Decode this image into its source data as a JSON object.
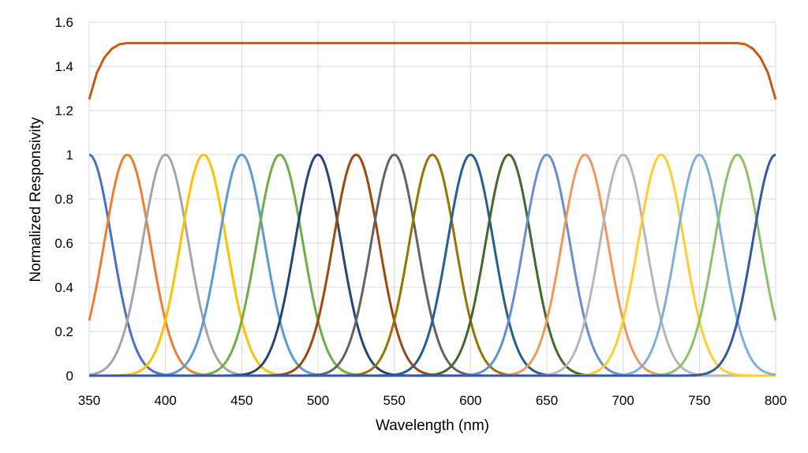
{
  "chart_data": {
    "type": "line",
    "title": "",
    "xlabel": "Wavelength (nm)",
    "ylabel": "Normalized Responsivity",
    "xlim": [
      350,
      800
    ],
    "ylim": [
      0,
      1.6
    ],
    "x_ticks": [
      "350",
      "400",
      "450",
      "500",
      "550",
      "600",
      "650",
      "700",
      "750",
      "800"
    ],
    "y_ticks": [
      "0",
      "0.2",
      "0.4",
      "0.6",
      "0.8",
      "1",
      "1.2",
      "1.4",
      "1.6"
    ],
    "grid": true,
    "legend": "none",
    "x": [
      350,
      360,
      370,
      375,
      380,
      390,
      400,
      410,
      420,
      425,
      430,
      440,
      450,
      460,
      470,
      475,
      480,
      490,
      500,
      510,
      520,
      525,
      530,
      540,
      550,
      560,
      570,
      575,
      580,
      590,
      600,
      610,
      620,
      625,
      630,
      640,
      650,
      660,
      670,
      675,
      680,
      690,
      700,
      710,
      720,
      725,
      730,
      740,
      750,
      760,
      770,
      775,
      780,
      790,
      800
    ],
    "gaussian_sigma_nm": 15,
    "series": [
      {
        "peak_nm": 350,
        "peak": 1,
        "color": "#4472C4"
      },
      {
        "peak_nm": 375,
        "peak": 1,
        "color": "#ED7D31"
      },
      {
        "peak_nm": 400,
        "peak": 1,
        "color": "#A5A5A5"
      },
      {
        "peak_nm": 425,
        "peak": 1,
        "color": "#FFC000"
      },
      {
        "peak_nm": 450,
        "peak": 1,
        "color": "#5B9BD5"
      },
      {
        "peak_nm": 475,
        "peak": 1,
        "color": "#70AD47"
      },
      {
        "peak_nm": 500,
        "peak": 1,
        "color": "#264478"
      },
      {
        "peak_nm": 525,
        "peak": 1,
        "color": "#9E480E"
      },
      {
        "peak_nm": 550,
        "peak": 1,
        "color": "#636363"
      },
      {
        "peak_nm": 575,
        "peak": 1,
        "color": "#997300"
      },
      {
        "peak_nm": 600,
        "peak": 1,
        "color": "#255E91"
      },
      {
        "peak_nm": 625,
        "peak": 1,
        "color": "#43682B"
      },
      {
        "peak_nm": 650,
        "peak": 1,
        "color": "#698ED0"
      },
      {
        "peak_nm": 675,
        "peak": 1,
        "color": "#F1975A"
      },
      {
        "peak_nm": 700,
        "peak": 1,
        "color": "#B7B7B7"
      },
      {
        "peak_nm": 725,
        "peak": 1,
        "color": "#FFCD33"
      },
      {
        "peak_nm": 750,
        "peak": 1,
        "color": "#7CAFDD"
      },
      {
        "peak_nm": 775,
        "peak": 1,
        "color": "#8CC168"
      },
      {
        "peak_nm": 800,
        "peak": 1,
        "color": "#335AA1"
      }
    ],
    "sum_series": {
      "color": "#C55A11",
      "points": [
        [
          350,
          1.25
        ],
        [
          355,
          1.37
        ],
        [
          360,
          1.44
        ],
        [
          365,
          1.48
        ],
        [
          370,
          1.5
        ],
        [
          375,
          1.505
        ],
        [
          400,
          1.505
        ],
        [
          425,
          1.505
        ],
        [
          450,
          1.505
        ],
        [
          475,
          1.505
        ],
        [
          500,
          1.505
        ],
        [
          525,
          1.505
        ],
        [
          550,
          1.505
        ],
        [
          575,
          1.505
        ],
        [
          600,
          1.505
        ],
        [
          625,
          1.505
        ],
        [
          650,
          1.505
        ],
        [
          675,
          1.505
        ],
        [
          700,
          1.505
        ],
        [
          725,
          1.505
        ],
        [
          750,
          1.505
        ],
        [
          775,
          1.505
        ],
        [
          780,
          1.5
        ],
        [
          785,
          1.48
        ],
        [
          790,
          1.44
        ],
        [
          795,
          1.37
        ],
        [
          800,
          1.25
        ]
      ]
    }
  }
}
